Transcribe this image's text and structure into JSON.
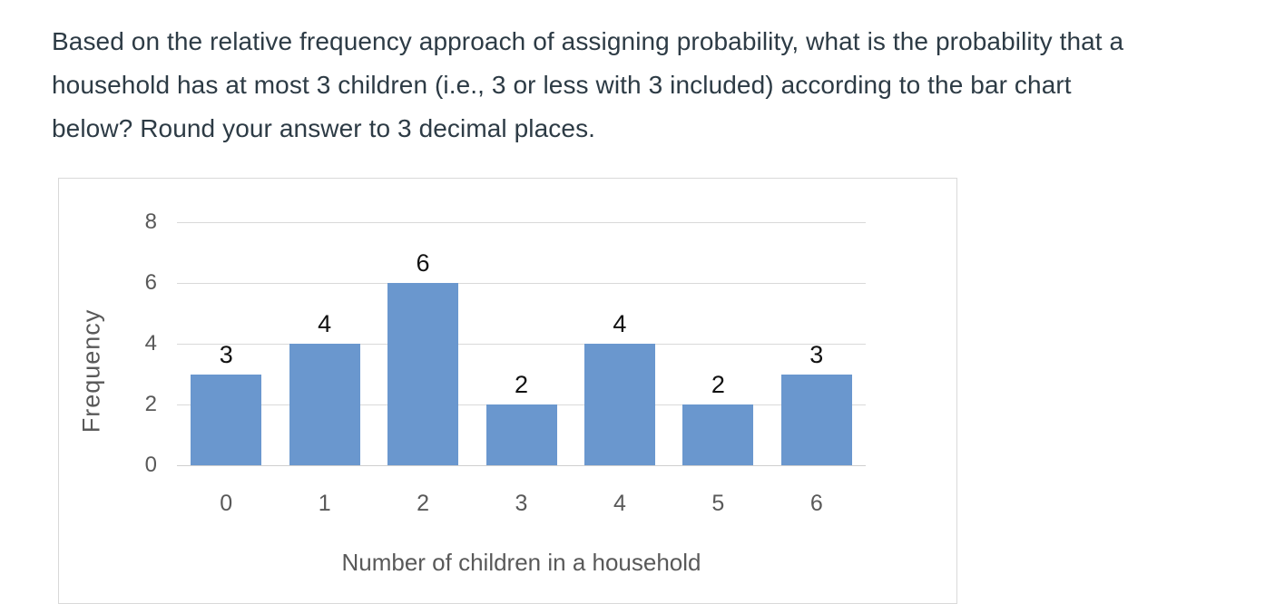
{
  "question": {
    "lines": [
      "Based on the relative frequency approach of assigning probability, what is the probability that a",
      "household has at most 3 children (i.e., 3 or less with 3 included) according to the bar chart",
      "below? Round your answer to 3 decimal places."
    ]
  },
  "chart_data": {
    "type": "bar",
    "title": "",
    "categories": [
      "0",
      "1",
      "2",
      "3",
      "4",
      "5",
      "6"
    ],
    "values": [
      3,
      4,
      6,
      2,
      4,
      2,
      3
    ],
    "data_labels": [
      "3",
      "4",
      "6",
      "2",
      "4",
      "2",
      "3"
    ],
    "xlabel": "Number of children in a household",
    "ylabel": "Frequency",
    "yticks": [
      0,
      2,
      4,
      6,
      8
    ],
    "ylim": [
      0,
      8
    ],
    "grid": true,
    "legend": "none",
    "colors": {
      "bar": "#6a97ce",
      "gridline": "#d9d9d9",
      "axis_text": "#595959",
      "data_label_text": "#111111",
      "frame_border": "#d9d9d9",
      "question_text": "#2d3b45"
    }
  }
}
